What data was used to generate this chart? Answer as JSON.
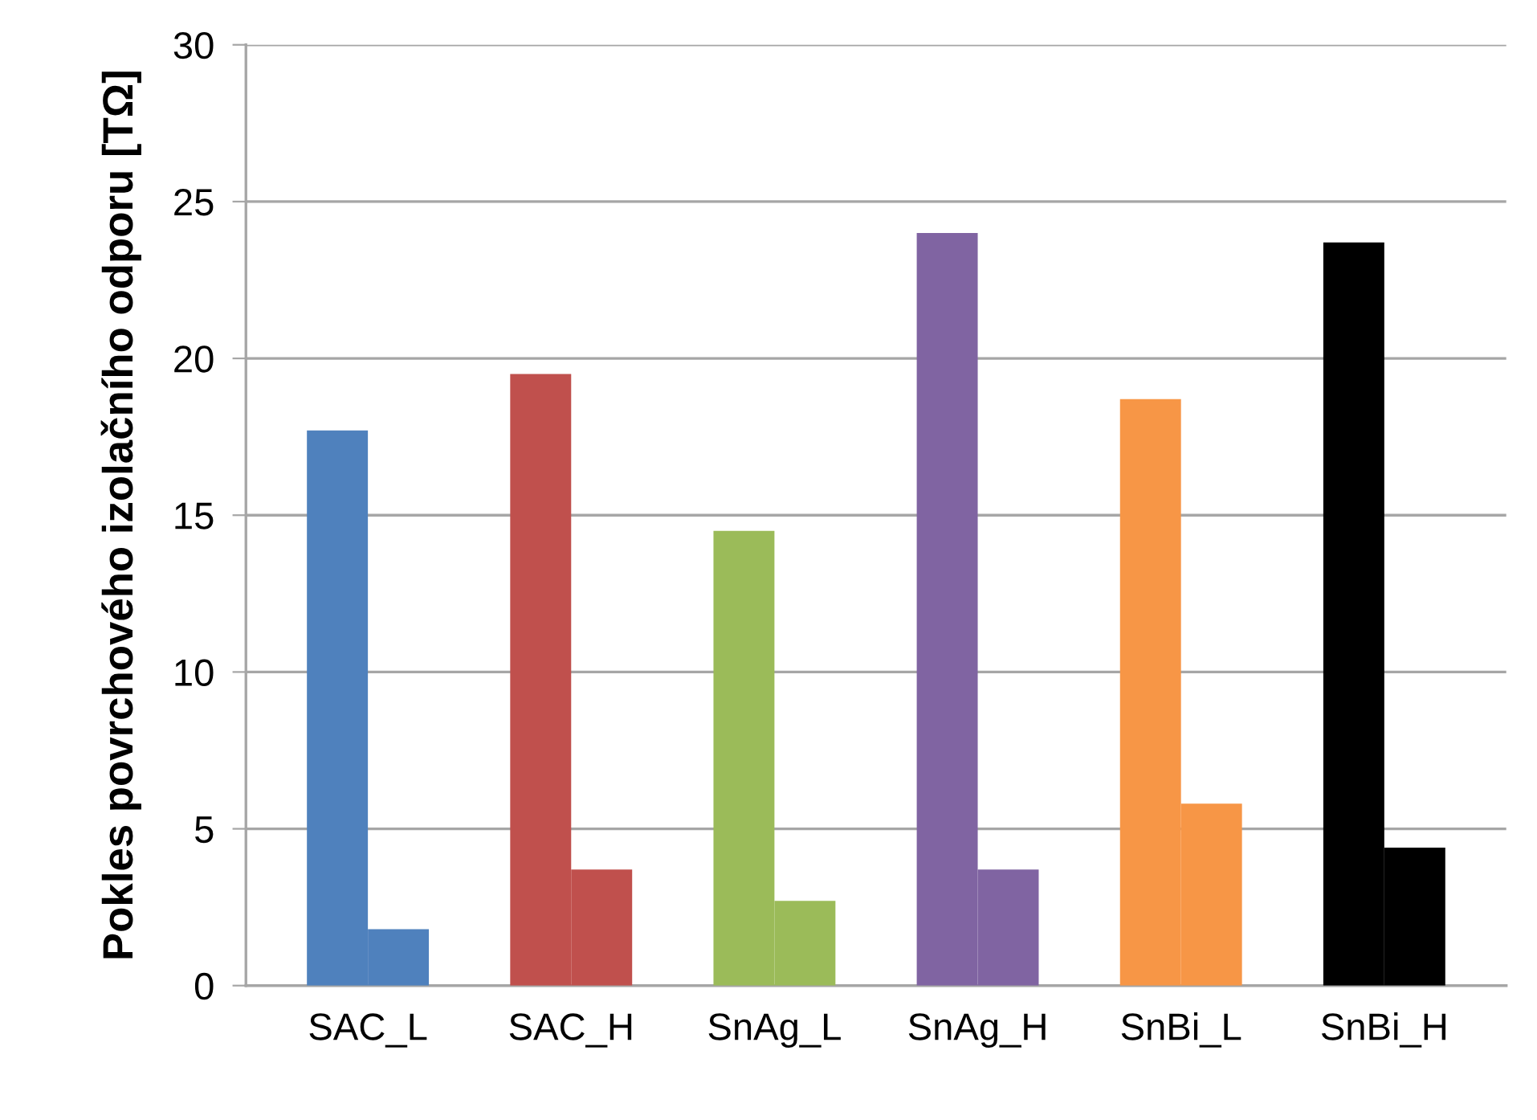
{
  "chart_data": {
    "type": "bar",
    "ylabel": "Pokles povrchového izolačního odporu [TΩ]",
    "categories": [
      "SAC_L",
      "SAC_H",
      "SnAg_L",
      "SnAg_H",
      "SnBi_L",
      "SnBi_H"
    ],
    "series": [
      {
        "colors": [
          "#4f81bd",
          "#c0504d",
          "#9bbb59",
          "#8064a2",
          "#f79646",
          "#000000"
        ],
        "values": [
          17.7,
          19.5,
          14.5,
          24.0,
          18.7,
          23.7
        ]
      },
      {
        "colors": [
          "#4f81bd",
          "#c0504d",
          "#9bbb59",
          "#8064a2",
          "#f79646",
          "#000000"
        ],
        "values": [
          1.8,
          3.7,
          2.7,
          3.7,
          5.8,
          4.4
        ]
      }
    ],
    "ylim": [
      0,
      30
    ],
    "yticks": [
      0,
      5,
      10,
      15,
      20,
      25,
      30
    ],
    "grid": "y"
  }
}
